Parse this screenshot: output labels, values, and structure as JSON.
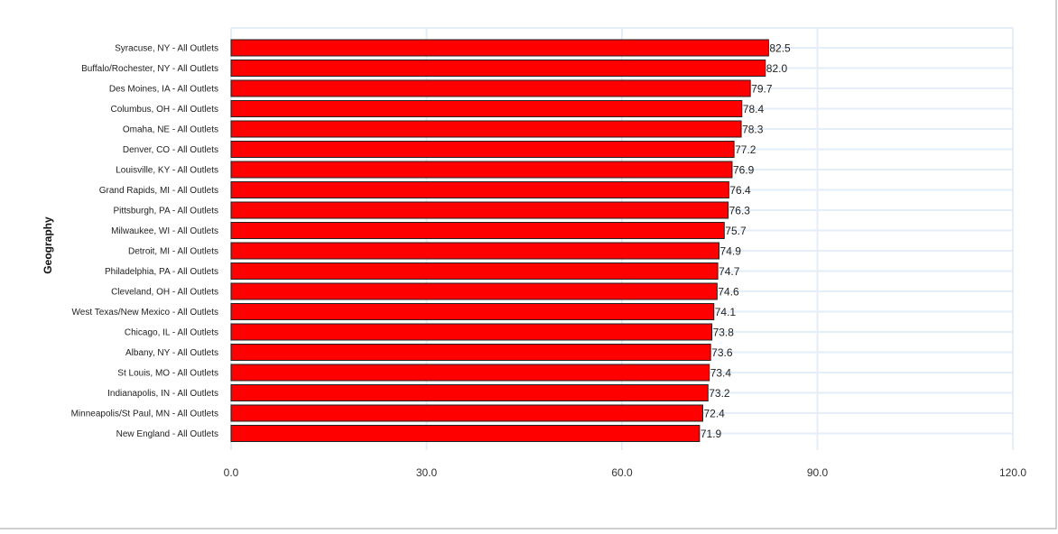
{
  "colors": {
    "bar": "#ff0000",
    "bar_stroke": "#222222",
    "grid": "#e3eef8"
  },
  "chart_data": {
    "type": "bar",
    "orientation": "horizontal",
    "title": "",
    "xlabel": "",
    "ylabel": "Geography",
    "xlim": [
      0,
      120
    ],
    "xticks": [
      "0.0",
      "30.0",
      "60.0",
      "90.0",
      "120.0"
    ],
    "grid": true,
    "categories": [
      "Syracuse, NY - All Outlets",
      "Buffalo/Rochester, NY - All Outlets",
      "Des Moines, IA - All Outlets",
      "Columbus, OH - All Outlets",
      "Omaha, NE - All Outlets",
      "Denver, CO - All Outlets",
      "Louisville, KY - All Outlets",
      "Grand Rapids, MI - All Outlets",
      "Pittsburgh, PA - All Outlets",
      "Milwaukee, WI - All Outlets",
      "Detroit, MI - All Outlets",
      "Philadelphia, PA - All Outlets",
      "Cleveland, OH - All Outlets",
      "West Texas/New Mexico - All Outlets",
      "Chicago, IL - All Outlets",
      "Albany, NY - All Outlets",
      "St Louis, MO - All Outlets",
      "Indianapolis, IN - All Outlets",
      "Minneapolis/St Paul, MN - All Outlets",
      "New England - All Outlets"
    ],
    "values": [
      82.5,
      82.0,
      79.7,
      78.4,
      78.3,
      77.2,
      76.9,
      76.4,
      76.3,
      75.7,
      74.9,
      74.7,
      74.6,
      74.1,
      73.8,
      73.6,
      73.4,
      73.2,
      72.4,
      71.9
    ],
    "value_labels": [
      "82.5",
      "82.0",
      "79.7",
      "78.4",
      "78.3",
      "77.2",
      "76.9",
      "76.4",
      "76.3",
      "75.7",
      "74.9",
      "74.7",
      "74.6",
      "74.1",
      "73.8",
      "73.6",
      "73.4",
      "73.2",
      "72.4",
      "71.9"
    ]
  }
}
